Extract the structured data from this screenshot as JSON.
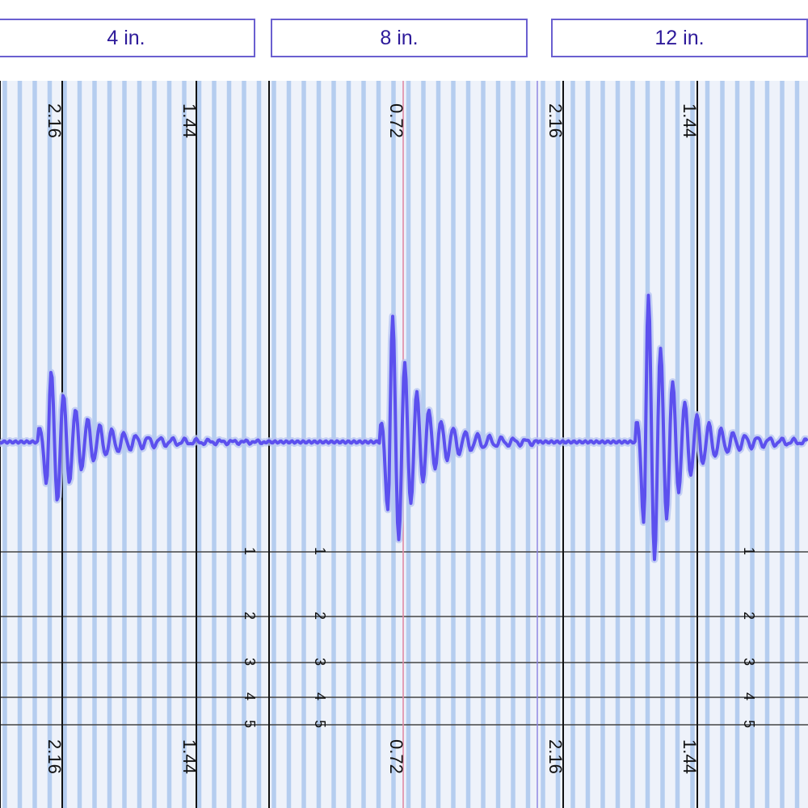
{
  "tabs": [
    {
      "label": "4 in."
    },
    {
      "label": "8 in."
    },
    {
      "label": "12 in."
    }
  ],
  "chart_data": {
    "type": "line",
    "title": "",
    "xlabel": "",
    "ylabel": "",
    "grid": true,
    "grid_minor_count": 40,
    "colors": {
      "background": "#eef2fa",
      "stripe": "#b5cdef",
      "trace": "#5c50ee",
      "trace_glow": "#b8c6f2",
      "axis_line": "#111111",
      "marker_line": "#e08aa6",
      "tab_border": "#6a5fd0",
      "tab_text": "#2d1a9a"
    },
    "panels": [
      {
        "name": "4 in.",
        "x_ticks": [
          {
            "label": "2.16",
            "x": 0.15
          },
          {
            "label": "1.44",
            "x": 0.85
          }
        ],
        "pulse": {
          "center": 0.18,
          "peaks": [
            0.45,
            0.25,
            0.35
          ],
          "decay": 0.6
        },
        "depth_markers": [
          {
            "label": "1",
            "row": 1
          },
          {
            "label": "2",
            "row": 2
          },
          {
            "label": "3",
            "row": 3
          },
          {
            "label": "4",
            "row": 4
          },
          {
            "label": "5",
            "row": 5
          }
        ]
      },
      {
        "name": "8 in.",
        "x_ticks": [
          {
            "label": "0.72",
            "x": 0.5
          }
        ],
        "pulse": {
          "center": 0.45,
          "peaks": [
            0.85,
            0.75
          ],
          "decay": 0.5
        },
        "depth_markers": [
          {
            "label": "1",
            "row": 1
          },
          {
            "label": "2",
            "row": 2
          },
          {
            "label": "3",
            "row": 3
          },
          {
            "label": "4",
            "row": 4
          },
          {
            "label": "5",
            "row": 5
          }
        ]
      },
      {
        "name": "12 in.",
        "x_ticks": [
          {
            "label": "2.16",
            "x": 0.05
          },
          {
            "label": "1.44",
            "x": 0.6
          }
        ],
        "pulse": {
          "center": 0.4,
          "peaks": [
            1.0,
            0.9
          ],
          "decay": 0.55
        },
        "depth_markers": [
          {
            "label": "1",
            "row": 1
          },
          {
            "label": "2",
            "row": 2
          },
          {
            "label": "3",
            "row": 3
          },
          {
            "label": "4",
            "row": 4
          },
          {
            "label": "5",
            "row": 5
          }
        ]
      }
    ]
  }
}
